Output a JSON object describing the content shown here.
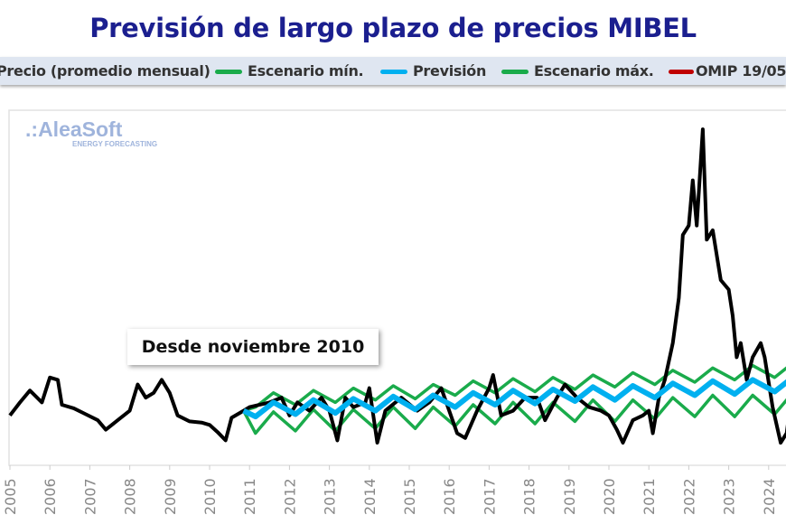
{
  "chart_data": {
    "type": "line",
    "title": "Previsión de largo plazo de precios MIBEL",
    "annotation": "Desde noviembre 2010",
    "logo": {
      "name": "AleaSoft",
      "tagline": "ENERGY FORECASTING"
    },
    "xlim": [
      2005,
      2024.6
    ],
    "ylim": [
      0,
      299
    ],
    "grid": false,
    "legend_position": "top",
    "x_ticks": [
      "2005",
      "2006",
      "2007",
      "2008",
      "2009",
      "2010",
      "2011",
      "2012",
      "2013",
      "2014",
      "2015",
      "2016",
      "2017",
      "2018",
      "2019",
      "2020",
      "2021",
      "2022",
      "2023",
      "2024"
    ],
    "legend": [
      {
        "label": "Precio (promedio mensual)",
        "color": "#000000"
      },
      {
        "label": "Escenario mín.",
        "color": "#1aab4b"
      },
      {
        "label": "Previsión",
        "color": "#00b0f0"
      },
      {
        "label": "Escenario máx.",
        "color": "#1aab4b"
      },
      {
        "label": "OMIP 19/05",
        "color": "#c00000"
      }
    ],
    "series": [
      {
        "name": "Precio (promedio mensual)",
        "color": "#000000",
        "x": [
          2005.0,
          2005.25,
          2005.5,
          2005.8,
          2006.0,
          2006.2,
          2006.3,
          2006.6,
          2006.9,
          2007.2,
          2007.4,
          2007.7,
          2008.0,
          2008.2,
          2008.4,
          2008.6,
          2008.8,
          2009.0,
          2009.2,
          2009.5,
          2009.8,
          2010.0,
          2010.2,
          2010.4,
          2010.55,
          2010.85,
          2011.0,
          2011.5,
          2011.8,
          2012.0,
          2012.2,
          2012.5,
          2012.8,
          2013.0,
          2013.2,
          2013.4,
          2013.6,
          2013.9,
          2014.0,
          2014.2,
          2014.4,
          2014.8,
          2015.2,
          2015.5,
          2015.8,
          2016.0,
          2016.2,
          2016.4,
          2016.7,
          2017.0,
          2017.1,
          2017.3,
          2017.6,
          2017.9,
          2018.2,
          2018.4,
          2018.7,
          2018.9,
          2019.2,
          2019.5,
          2019.8,
          2020.0,
          2020.2,
          2020.35,
          2020.6,
          2020.85,
          2021.0,
          2021.1,
          2021.25,
          2021.4,
          2021.6,
          2021.75,
          2021.85,
          2022.0,
          2022.1,
          2022.2,
          2022.35,
          2022.45,
          2022.6,
          2022.8,
          2023.0,
          2023.1,
          2023.2,
          2023.3,
          2023.45,
          2023.6,
          2023.8,
          2023.9,
          2024.1,
          2024.3,
          2024.45,
          2024.6
        ],
        "y": [
          42,
          53,
          63,
          53,
          74,
          72,
          51,
          48,
          43,
          38,
          30,
          38,
          46,
          68,
          57,
          61,
          72,
          61,
          42,
          37,
          36,
          34,
          28,
          21,
          40,
          46,
          49,
          53,
          57,
          42,
          53,
          46,
          57,
          46,
          21,
          57,
          49,
          53,
          65,
          19,
          46,
          57,
          46,
          53,
          65,
          46,
          27,
          23,
          46,
          65,
          76,
          42,
          46,
          57,
          57,
          38,
          57,
          68,
          57,
          49,
          46,
          42,
          30,
          19,
          38,
          42,
          46,
          27,
          57,
          72,
          103,
          141,
          194,
          202,
          240,
          202,
          283,
          190,
          198,
          156,
          148,
          126,
          91,
          103,
          72,
          91,
          103,
          91,
          49,
          19,
          27,
          65
        ]
      },
      {
        "name": "Escenario mín.",
        "color": "#1aab4b",
        "x": [
          2010.85,
          2011.15,
          2011.6,
          2012.15,
          2012.6,
          2013.15,
          2013.6,
          2014.15,
          2014.6,
          2015.15,
          2015.6,
          2016.15,
          2016.6,
          2017.15,
          2017.6,
          2018.15,
          2018.6,
          2019.15,
          2019.6,
          2020.15,
          2020.6,
          2021.15,
          2021.6,
          2022.15,
          2022.6,
          2023.15,
          2023.6,
          2024.15,
          2024.6
        ],
        "y": [
          46,
          27,
          45,
          29,
          47,
          29,
          47,
          31,
          49,
          31,
          49,
          33,
          51,
          35,
          53,
          35,
          53,
          37,
          55,
          37,
          55,
          39,
          57,
          41,
          59,
          41,
          59,
          43,
          61
        ]
      },
      {
        "name": "Previsión",
        "color": "#00b0f0",
        "x": [
          2010.85,
          2011.15,
          2011.6,
          2012.15,
          2012.6,
          2013.15,
          2013.6,
          2014.15,
          2014.6,
          2015.15,
          2015.6,
          2016.15,
          2016.6,
          2017.15,
          2017.6,
          2018.15,
          2018.6,
          2019.15,
          2019.6,
          2020.15,
          2020.6,
          2021.15,
          2021.6,
          2022.15,
          2022.6,
          2023.15,
          2023.6,
          2024.15,
          2024.6
        ],
        "y": [
          46,
          41,
          53,
          43,
          55,
          44,
          56,
          46,
          58,
          47,
          59,
          49,
          61,
          51,
          63,
          52,
          64,
          54,
          66,
          55,
          67,
          57,
          69,
          59,
          71,
          60,
          72,
          62,
          74
        ]
      },
      {
        "name": "Escenario máx.",
        "color": "#1aab4b",
        "x": [
          2010.85,
          2011.15,
          2011.6,
          2012.15,
          2012.6,
          2013.15,
          2013.6,
          2014.15,
          2014.6,
          2015.15,
          2015.6,
          2016.15,
          2016.6,
          2017.15,
          2017.6,
          2018.15,
          2018.6,
          2019.15,
          2019.6,
          2020.15,
          2020.6,
          2021.15,
          2021.6,
          2022.15,
          2022.6,
          2023.15,
          2023.6,
          2024.15,
          2024.6
        ],
        "y": [
          46,
          49,
          61,
          51,
          63,
          53,
          65,
          55,
          67,
          56,
          68,
          59,
          71,
          61,
          73,
          62,
          74,
          64,
          76,
          66,
          78,
          68,
          80,
          70,
          82,
          72,
          84,
          74,
          86
        ]
      }
    ]
  }
}
